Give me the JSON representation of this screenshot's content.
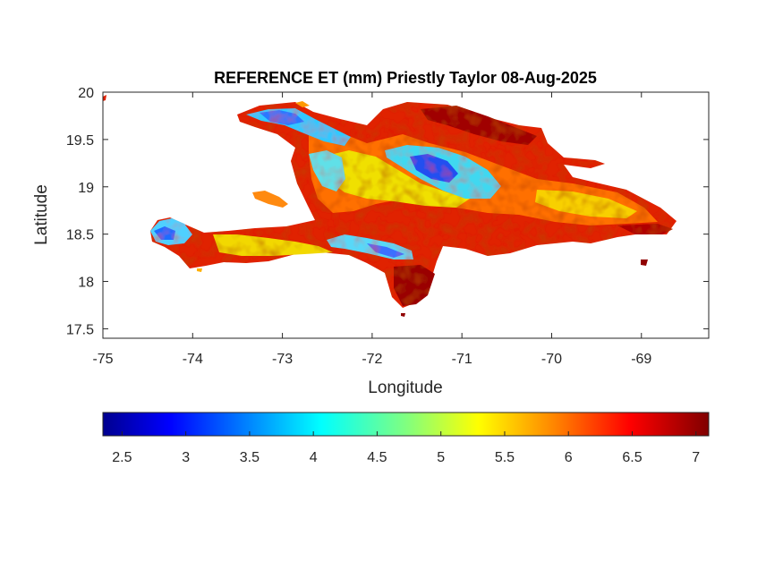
{
  "chart_data": {
    "type": "heatmap",
    "title": "REFERENCE ET (mm) Priestly Taylor 08-Aug-2025",
    "xlabel": "Longitude",
    "ylabel": "Latitude",
    "xlim": [
      -75,
      -68.25
    ],
    "ylim": [
      17.4,
      20
    ],
    "xticks": [
      -75,
      -74,
      -73,
      -72,
      -71,
      -70,
      -69
    ],
    "xtick_labels": [
      "-75",
      "-74",
      "-73",
      "-72",
      "-71",
      "-70",
      "-69"
    ],
    "yticks": [
      17.5,
      18,
      18.5,
      19,
      19.5,
      20
    ],
    "ytick_labels": [
      "17.5",
      "18",
      "18.5",
      "19",
      "19.5",
      "20"
    ],
    "grid": false,
    "colormap": "jet",
    "colorbar": {
      "orientation": "horizontal",
      "placement": "below",
      "range": [
        2.35,
        7.1
      ],
      "ticks": [
        2.5,
        3,
        3.5,
        4,
        4.5,
        5,
        5.5,
        6,
        6.5,
        7
      ],
      "tick_labels": [
        "2.5",
        "3",
        "3.5",
        "4",
        "4.5",
        "5",
        "5.5",
        "6",
        "6.5",
        "7"
      ],
      "colors": [
        "#00008f",
        "#0000ff",
        "#0080ff",
        "#00ffff",
        "#80ff80",
        "#ffff00",
        "#ff8000",
        "#ff0000",
        "#800000"
      ]
    },
    "regions": [
      {
        "name": "",
        "value_range": [
          5.5,
          7.0
        ]
      },
      {
        "name": "",
        "value_range": [
          3.0,
          4.0
        ]
      }
    ]
  }
}
